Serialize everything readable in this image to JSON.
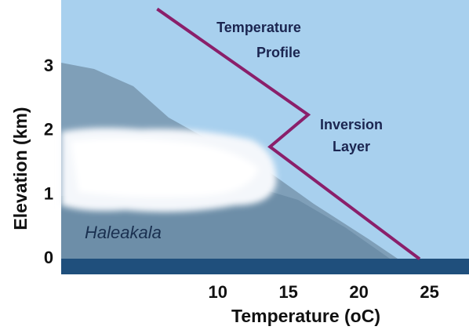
{
  "chart_data": {
    "type": "line",
    "x_label": "Temperature (oC)",
    "y_label": "Elevation (km)",
    "annotations": [
      {
        "lines": [
          "Temperature",
          "Profile"
        ]
      },
      {
        "lines": [
          "Inversion",
          "Layer"
        ]
      },
      {
        "lines": [
          "Haleakala"
        ]
      }
    ],
    "x": [
      5.7,
      16.4,
      13.7,
      24.3
    ],
    "series": [
      {
        "name": "Temperature Profile",
        "color": "#8a1f6a",
        "values": [
          3.9,
          2.25,
          1.75,
          0
        ]
      }
    ],
    "xlim": [
      -1.1,
      27.8
    ],
    "ylim": [
      -0.24,
      4.04
    ],
    "xticks": [
      10,
      15,
      20,
      25
    ],
    "yticks": [
      0,
      1,
      2,
      3
    ],
    "grid": false
  }
}
